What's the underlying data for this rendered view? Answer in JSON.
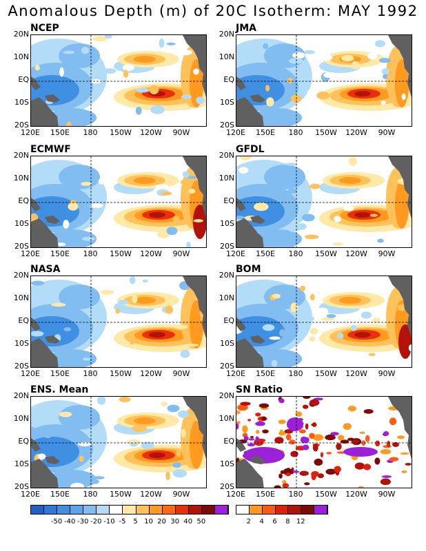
{
  "title": "Anomalous Depth (m) of 20C Isotherm: MAY 1992",
  "lat_labels": [
    "20N",
    "10N",
    "EQ",
    "10S",
    "20S"
  ],
  "lon_labels": [
    "120E",
    "150E",
    "180",
    "150W",
    "120W",
    "90W"
  ],
  "panels": [
    {
      "name": "NCEP"
    },
    {
      "name": "JMA"
    },
    {
      "name": "ECMWF"
    },
    {
      "name": "GFDL"
    },
    {
      "name": "NASA"
    },
    {
      "name": "BOM"
    },
    {
      "name": "ENS. Mean"
    },
    {
      "name": "SN Ratio"
    }
  ],
  "colorbar_main": {
    "labels": [
      "-50",
      "-40",
      "-30",
      "-20",
      "-10",
      "-5",
      "5",
      "10",
      "20",
      "30",
      "40",
      "50"
    ],
    "colors": [
      "#1e5fc8",
      "#2f78d8",
      "#3f8fe3",
      "#5aa4ec",
      "#82bdf2",
      "#b3dcf8",
      "#ffffff",
      "#ffe9a6",
      "#ffc25a",
      "#ff9a1f",
      "#ff6a10",
      "#e8300a",
      "#b3120a",
      "#7d0808",
      "#9b20d8"
    ]
  },
  "colorbar_sn": {
    "labels": [
      "2",
      "4",
      "6",
      "8",
      "12"
    ],
    "colors": [
      "#ffffff",
      "#ff9a1f",
      "#ff5a10",
      "#e0200a",
      "#b3120a",
      "#7d0808",
      "#9b20d8"
    ]
  }
}
